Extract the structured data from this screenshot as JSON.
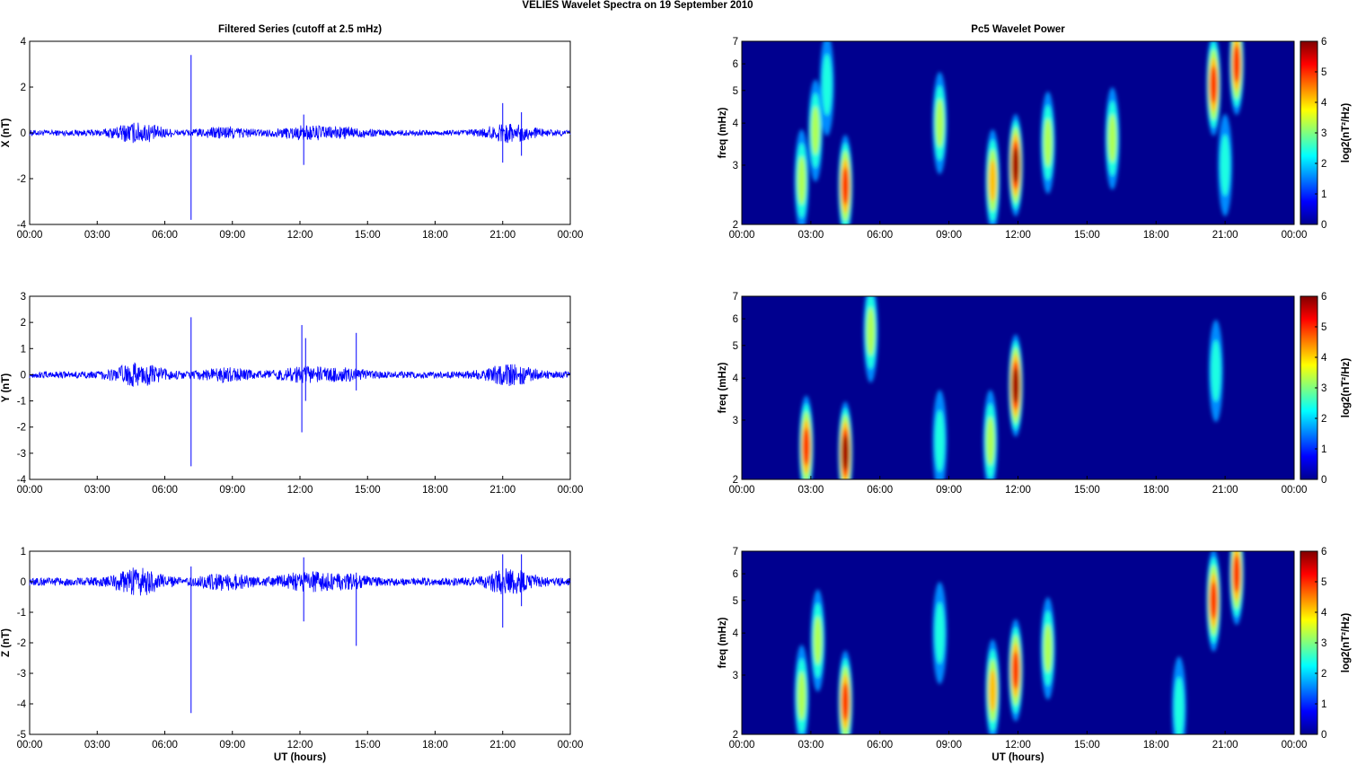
{
  "figure_title": "VELIES Wavelet Spectra on 19 September 2010",
  "colors": {
    "trace": "#0000ff",
    "axis": "#000000",
    "background_map": "#00008f"
  },
  "chart_data": [
    {
      "type": "line",
      "title": "Filtered Series (cutoff at 2.5 mHz)",
      "ylabel": "X (nT)",
      "xlabel": "",
      "ylim": [
        -4,
        4
      ],
      "yticks": [
        "4",
        "2",
        "0",
        "-2",
        "-4"
      ],
      "xlim": [
        "00:00",
        "24:00"
      ],
      "xticks": [
        "00:00",
        "03:00",
        "06:00",
        "09:00",
        "12:00",
        "15:00",
        "18:00",
        "21:00",
        "00:00"
      ],
      "spikes": [
        {
          "x": "07:10",
          "min": -3.8,
          "max": 3.4
        },
        {
          "x": "12:10",
          "min": -1.4,
          "max": 0.8
        },
        {
          "x": "21:00",
          "min": -1.3,
          "max": 1.3
        },
        {
          "x": "21:50",
          "min": -1.0,
          "max": 0.9
        }
      ]
    },
    {
      "type": "line",
      "title": "",
      "ylabel": "Y (nT)",
      "xlabel": "",
      "ylim": [
        -4,
        3
      ],
      "yticks": [
        "3",
        "2",
        "1",
        "0",
        "-1",
        "-2",
        "-3",
        "-4"
      ],
      "xlim": [
        "00:00",
        "24:00"
      ],
      "xticks": [
        "00:00",
        "03:00",
        "06:00",
        "09:00",
        "12:00",
        "15:00",
        "18:00",
        "21:00",
        "00:00"
      ],
      "spikes": [
        {
          "x": "07:10",
          "min": -3.5,
          "max": 2.2
        },
        {
          "x": "12:05",
          "min": -2.2,
          "max": 1.9
        },
        {
          "x": "12:15",
          "min": -1.0,
          "max": 1.4
        },
        {
          "x": "14:30",
          "min": -0.6,
          "max": 1.6
        }
      ]
    },
    {
      "type": "line",
      "title": "",
      "ylabel": "Z (nT)",
      "xlabel": "UT (hours)",
      "ylim": [
        -5,
        1
      ],
      "yticks": [
        "1",
        "0",
        "-1",
        "-2",
        "-3",
        "-4",
        "-5"
      ],
      "xlim": [
        "00:00",
        "24:00"
      ],
      "xticks": [
        "00:00",
        "03:00",
        "06:00",
        "09:00",
        "12:00",
        "15:00",
        "18:00",
        "21:00",
        "00:00"
      ],
      "spikes": [
        {
          "x": "07:10",
          "min": -4.3,
          "max": 0.5
        },
        {
          "x": "12:10",
          "min": -1.3,
          "max": 0.8
        },
        {
          "x": "14:30",
          "min": -2.1,
          "max": 0.3
        },
        {
          "x": "21:00",
          "min": -1.5,
          "max": 0.9
        },
        {
          "x": "21:50",
          "min": -0.8,
          "max": 0.9
        }
      ]
    },
    {
      "type": "heatmap",
      "title": "Pc5 Wavelet Power",
      "ylabel": "freq (mHz)",
      "xlabel": "",
      "ylim": [
        2,
        7
      ],
      "yscale": "log",
      "yticks": [
        "7",
        "6",
        "5",
        "4",
        "3",
        "2"
      ],
      "xticks": [
        "00:00",
        "03:00",
        "06:00",
        "09:00",
        "12:00",
        "15:00",
        "18:00",
        "21:00",
        "00:00"
      ],
      "colorbar_label": "log2(nT²/Hz)",
      "colorbar_ticks": [
        "6",
        "5",
        "4",
        "3",
        "2",
        "1",
        "0"
      ],
      "clim": [
        0,
        6
      ],
      "blobs": [
        {
          "t": 2.6,
          "f": 2.7,
          "p": 3.0
        },
        {
          "t": 3.2,
          "f": 3.8,
          "p": 3.0
        },
        {
          "t": 4.5,
          "f": 2.6,
          "p": 5.0
        },
        {
          "t": 3.7,
          "f": 5.2,
          "p": 2.0
        },
        {
          "t": 8.6,
          "f": 4.0,
          "p": 2.8
        },
        {
          "t": 10.9,
          "f": 2.7,
          "p": 3.5
        },
        {
          "t": 11.9,
          "f": 3.0,
          "p": 6.0
        },
        {
          "t": 13.3,
          "f": 3.5,
          "p": 2.6
        },
        {
          "t": 16.1,
          "f": 3.6,
          "p": 2.5
        },
        {
          "t": 20.5,
          "f": 5.2,
          "p": 5.0
        },
        {
          "t": 21.5,
          "f": 6.0,
          "p": 5.0
        },
        {
          "t": 21.0,
          "f": 3.0,
          "p": 1.8
        }
      ]
    },
    {
      "type": "heatmap",
      "title": "",
      "ylabel": "freq (mHz)",
      "xlabel": "",
      "ylim": [
        2,
        7
      ],
      "yscale": "log",
      "yticks": [
        "7",
        "6",
        "5",
        "4",
        "3",
        "2"
      ],
      "xticks": [
        "00:00",
        "03:00",
        "06:00",
        "09:00",
        "12:00",
        "15:00",
        "18:00",
        "21:00",
        "00:00"
      ],
      "colorbar_label": "log2(nT²/Hz)",
      "colorbar_ticks": [
        "6",
        "5",
        "4",
        "3",
        "2",
        "1",
        "0"
      ],
      "clim": [
        0,
        6
      ],
      "blobs": [
        {
          "t": 2.8,
          "f": 2.5,
          "p": 5.0
        },
        {
          "t": 4.5,
          "f": 2.4,
          "p": 6.0
        },
        {
          "t": 5.6,
          "f": 5.5,
          "p": 2.5
        },
        {
          "t": 8.6,
          "f": 2.6,
          "p": 2.3
        },
        {
          "t": 10.8,
          "f": 2.6,
          "p": 2.8
        },
        {
          "t": 11.9,
          "f": 3.8,
          "p": 5.5
        },
        {
          "t": 20.6,
          "f": 4.2,
          "p": 2.2
        }
      ]
    },
    {
      "type": "heatmap",
      "title": "",
      "ylabel": "freq (mHz)",
      "xlabel": "UT (hours)",
      "ylim": [
        2,
        7
      ],
      "yscale": "log",
      "yticks": [
        "7",
        "6",
        "5",
        "4",
        "3",
        "2"
      ],
      "xticks": [
        "00:00",
        "03:00",
        "06:00",
        "09:00",
        "12:00",
        "15:00",
        "18:00",
        "21:00",
        "00:00"
      ],
      "colorbar_label": "log2(nT²/Hz)",
      "colorbar_ticks": [
        "6",
        "5",
        "4",
        "3",
        "2",
        "1",
        "0"
      ],
      "clim": [
        0,
        6
      ],
      "blobs": [
        {
          "t": 2.6,
          "f": 2.6,
          "p": 2.8
        },
        {
          "t": 4.5,
          "f": 2.5,
          "p": 4.5
        },
        {
          "t": 3.3,
          "f": 3.8,
          "p": 2.5
        },
        {
          "t": 8.6,
          "f": 4.0,
          "p": 2.4
        },
        {
          "t": 10.9,
          "f": 2.7,
          "p": 3.8
        },
        {
          "t": 11.9,
          "f": 3.1,
          "p": 5.2
        },
        {
          "t": 13.3,
          "f": 3.6,
          "p": 2.8
        },
        {
          "t": 20.5,
          "f": 5.0,
          "p": 5.0
        },
        {
          "t": 21.5,
          "f": 6.0,
          "p": 5.0
        },
        {
          "t": 19.0,
          "f": 2.4,
          "p": 2.0
        }
      ]
    }
  ]
}
